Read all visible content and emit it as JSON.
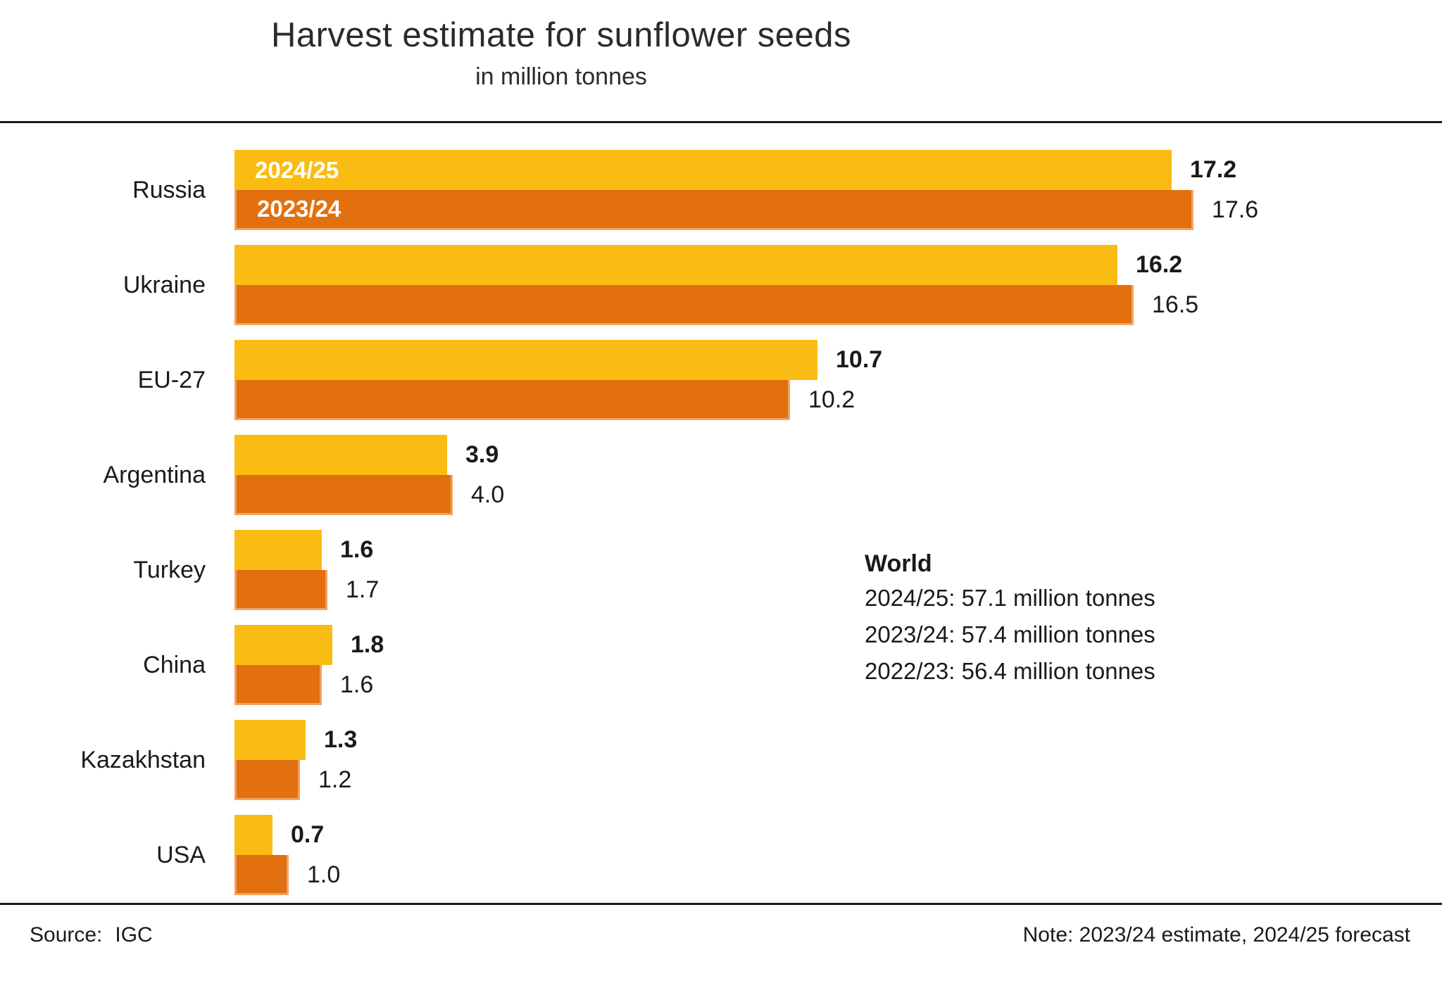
{
  "title": "Harvest estimate for sunflower seeds",
  "subtitle": "in million tonnes",
  "world": {
    "heading": "World",
    "lines": [
      "2024/25: 57.1 million tonnes",
      "2023/24: 57.4 million tonnes",
      "2022/23: 56.4 million tonnes"
    ]
  },
  "footer": {
    "source_label": "Source:",
    "source_value": "IGC",
    "note": "Note: 2023/24 estimate, 2024/25 forecast"
  },
  "colors": {
    "bar_2024_25": "#F9BC13",
    "bar_2023_24": "#E2700E",
    "bar_2023_24_border": "#F2A263",
    "text": "#1A1A1A"
  },
  "chart_data": {
    "type": "bar",
    "orientation": "horizontal",
    "title": "Harvest estimate for sunflower seeds",
    "unit": "million tonnes",
    "xlim": [
      0,
      22
    ],
    "grid": false,
    "legend_position": "inside-first-bars",
    "categories": [
      "Russia",
      "Ukraine",
      "EU-27",
      "Argentina",
      "Turkey",
      "China",
      "Kazakhstan",
      "USA"
    ],
    "series": [
      {
        "name": "2024/25",
        "color": "#F9BC13",
        "values": [
          17.2,
          16.2,
          10.7,
          3.9,
          1.6,
          1.8,
          1.3,
          0.7
        ]
      },
      {
        "name": "2023/24",
        "color": "#E2700E",
        "values": [
          17.6,
          16.5,
          10.2,
          4.0,
          1.7,
          1.6,
          1.2,
          1.0
        ]
      }
    ]
  }
}
